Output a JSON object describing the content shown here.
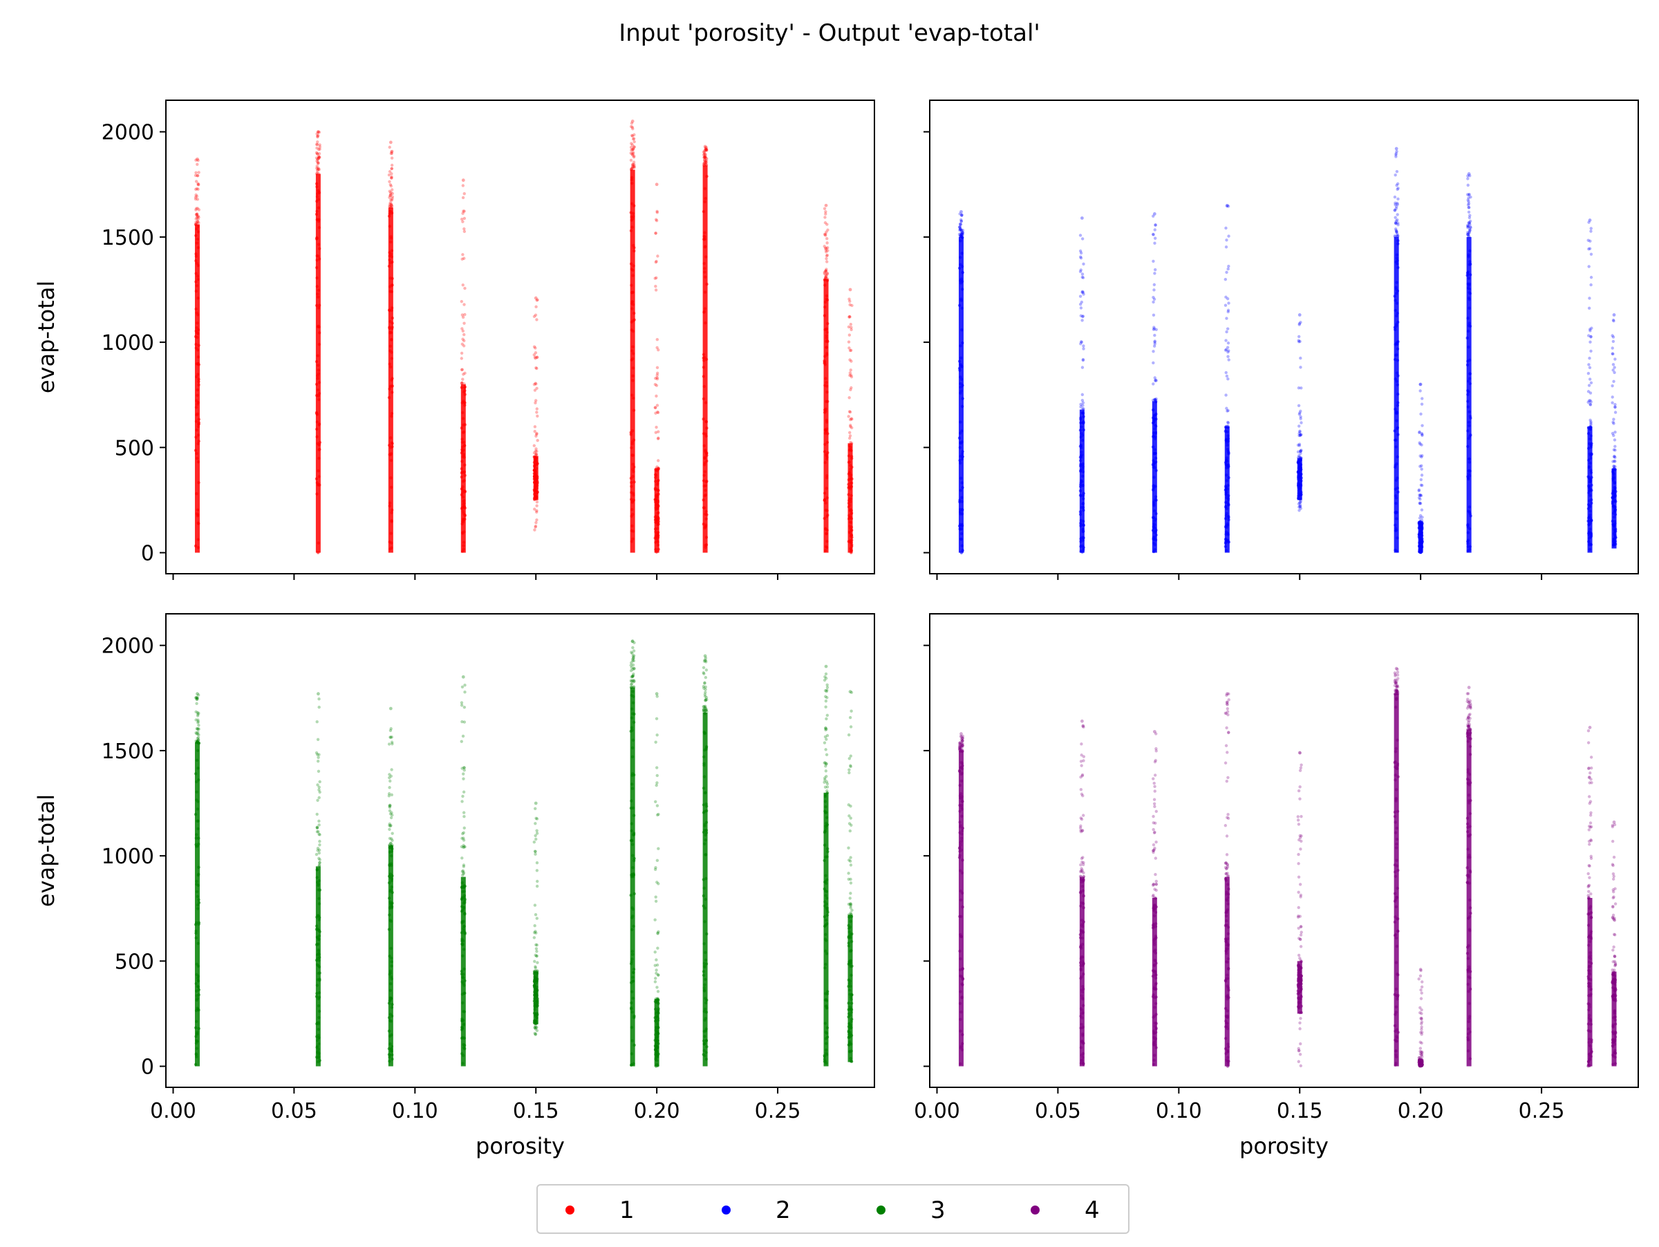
{
  "title": "Input 'porosity' - Output 'evap-total'",
  "legend": {
    "placement": "bottom-center",
    "items": [
      {
        "label": "1",
        "color": "#ff0000"
      },
      {
        "label": "2",
        "color": "#0000ff"
      },
      {
        "label": "3",
        "color": "#008000"
      },
      {
        "label": "4",
        "color": "#800080"
      }
    ]
  },
  "chart_data": [
    {
      "type": "scatter",
      "panel": "top-left",
      "series_name": "1",
      "color": "#ff0000",
      "xlabel": "",
      "ylabel": "evap-total",
      "xlim": [
        -0.003,
        0.29
      ],
      "ylim": [
        -100,
        2150
      ],
      "xticks": [
        "0.00",
        "0.05",
        "0.10",
        "0.15",
        "0.20",
        "0.25"
      ],
      "yticks": [
        "0",
        "500",
        "1000",
        "1500",
        "2000"
      ],
      "show_xtick_labels": false,
      "show_ytick_labels": true,
      "columns": [
        {
          "x": 0.01,
          "dense_max": 1560,
          "max": 1870
        },
        {
          "x": 0.06,
          "dense_max": 1800,
          "max": 2000
        },
        {
          "x": 0.09,
          "dense_max": 1640,
          "max": 1950
        },
        {
          "x": 0.12,
          "dense_max": 800,
          "max": 1770
        },
        {
          "x": 0.15,
          "min": 90,
          "dense_min": 250,
          "dense_max": 460,
          "max": 1210
        },
        {
          "x": 0.19,
          "dense_max": 1820,
          "max": 2050
        },
        {
          "x": 0.2,
          "dense_max": 400,
          "max": 1750
        },
        {
          "x": 0.22,
          "dense_max": 1840,
          "max": 1930
        },
        {
          "x": 0.27,
          "dense_max": 1300,
          "max": 1650
        },
        {
          "x": 0.28,
          "dense_max": 520,
          "max": 1250
        }
      ]
    },
    {
      "type": "scatter",
      "panel": "top-right",
      "series_name": "2",
      "color": "#0000ff",
      "xlabel": "",
      "ylabel": "",
      "xlim": [
        -0.003,
        0.29
      ],
      "ylim": [
        -100,
        2150
      ],
      "xticks": [
        "0.00",
        "0.05",
        "0.10",
        "0.15",
        "0.20",
        "0.25"
      ],
      "yticks": [
        "0",
        "500",
        "1000",
        "1500",
        "2000"
      ],
      "show_xtick_labels": false,
      "show_ytick_labels": false,
      "columns": [
        {
          "x": 0.01,
          "dense_max": 1500,
          "max": 1620
        },
        {
          "x": 0.06,
          "dense_max": 680,
          "max": 1590
        },
        {
          "x": 0.09,
          "dense_max": 720,
          "max": 1610
        },
        {
          "x": 0.12,
          "dense_max": 600,
          "max": 1650
        },
        {
          "x": 0.15,
          "min": 200,
          "dense_min": 250,
          "dense_max": 450,
          "max": 1130
        },
        {
          "x": 0.19,
          "dense_max": 1500,
          "max": 1920
        },
        {
          "x": 0.2,
          "dense_max": 150,
          "max": 800
        },
        {
          "x": 0.22,
          "dense_max": 1500,
          "max": 1800
        },
        {
          "x": 0.27,
          "dense_max": 600,
          "max": 1580
        },
        {
          "x": 0.28,
          "min": 20,
          "dense_max": 400,
          "max": 1130
        }
      ]
    },
    {
      "type": "scatter",
      "panel": "bottom-left",
      "series_name": "3",
      "color": "#008000",
      "xlabel": "porosity",
      "ylabel": "evap-total",
      "xlim": [
        -0.003,
        0.29
      ],
      "ylim": [
        -100,
        2150
      ],
      "xticks": [
        "0.00",
        "0.05",
        "0.10",
        "0.15",
        "0.20",
        "0.25"
      ],
      "yticks": [
        "0",
        "500",
        "1000",
        "1500",
        "2000"
      ],
      "show_xtick_labels": true,
      "show_ytick_labels": true,
      "columns": [
        {
          "x": 0.01,
          "dense_max": 1540,
          "max": 1770
        },
        {
          "x": 0.06,
          "dense_max": 950,
          "max": 1770
        },
        {
          "x": 0.09,
          "dense_max": 1050,
          "max": 1700
        },
        {
          "x": 0.12,
          "dense_max": 900,
          "max": 1850
        },
        {
          "x": 0.15,
          "min": 150,
          "dense_min": 200,
          "dense_max": 450,
          "max": 1250
        },
        {
          "x": 0.19,
          "dense_max": 1800,
          "max": 2020
        },
        {
          "x": 0.2,
          "dense_max": 320,
          "max": 1770
        },
        {
          "x": 0.22,
          "dense_max": 1680,
          "max": 1950
        },
        {
          "x": 0.27,
          "dense_max": 1300,
          "max": 1900
        },
        {
          "x": 0.28,
          "min": 20,
          "dense_max": 720,
          "max": 1780
        }
      ]
    },
    {
      "type": "scatter",
      "panel": "bottom-right",
      "series_name": "4",
      "color": "#800080",
      "xlabel": "porosity",
      "ylabel": "",
      "xlim": [
        -0.003,
        0.29
      ],
      "ylim": [
        -100,
        2150
      ],
      "xticks": [
        "0.00",
        "0.05",
        "0.10",
        "0.15",
        "0.20",
        "0.25"
      ],
      "yticks": [
        "0",
        "500",
        "1000",
        "1500",
        "2000"
      ],
      "show_xtick_labels": true,
      "show_ytick_labels": false,
      "columns": [
        {
          "x": 0.01,
          "dense_max": 1500,
          "max": 1580
        },
        {
          "x": 0.06,
          "dense_max": 900,
          "max": 1640
        },
        {
          "x": 0.09,
          "dense_max": 800,
          "max": 1590
        },
        {
          "x": 0.12,
          "dense_max": 900,
          "max": 1770
        },
        {
          "x": 0.15,
          "min": 0,
          "dense_min": 250,
          "dense_max": 500,
          "max": 1490
        },
        {
          "x": 0.19,
          "dense_max": 1770,
          "max": 1890
        },
        {
          "x": 0.2,
          "dense_max": 30,
          "max": 460
        },
        {
          "x": 0.22,
          "dense_max": 1600,
          "max": 1800
        },
        {
          "x": 0.27,
          "dense_max": 800,
          "max": 1610
        },
        {
          "x": 0.28,
          "min": 0,
          "dense_max": 450,
          "max": 1160
        }
      ]
    }
  ]
}
